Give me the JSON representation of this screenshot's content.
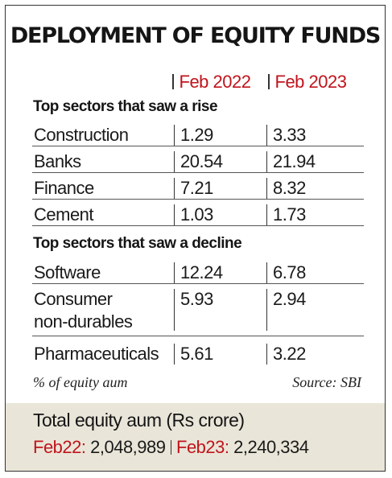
{
  "chart_data": {
    "type": "table",
    "title": "DEPLOYMENT OF EQUITY FUNDS",
    "columns": [
      "Feb 2022",
      "Feb 2023"
    ],
    "sections": [
      {
        "heading": "Top sectors that saw a rise",
        "rows": [
          {
            "label": [
              "Construction"
            ],
            "values": [
              "1.29",
              "3.33"
            ]
          },
          {
            "label": [
              "Banks"
            ],
            "values": [
              "20.54",
              "21.94"
            ]
          },
          {
            "label": [
              "Finance"
            ],
            "values": [
              "7.21",
              "8.32"
            ]
          },
          {
            "label": [
              "Cement"
            ],
            "values": [
              "1.03",
              "1.73"
            ]
          }
        ]
      },
      {
        "heading": "Top sectors that saw a decline",
        "rows": [
          {
            "label": [
              "Software"
            ],
            "values": [
              "12.24",
              "6.78"
            ]
          },
          {
            "label": [
              "Consumer",
              "non-durables"
            ],
            "values": [
              "5.93",
              "2.94"
            ]
          },
          {
            "label": [
              "Pharmaceuticals"
            ],
            "values": [
              "5.61",
              "3.22"
            ]
          }
        ]
      }
    ],
    "unit_note": "% of equity aum",
    "source": "Source: SBI"
  },
  "footer": {
    "title": "Total equity aum (Rs crore)",
    "items": [
      {
        "label": "Feb22:",
        "value": "2,048,989"
      },
      {
        "label": "Feb23:",
        "value": "2,240,334"
      }
    ]
  },
  "colors": {
    "accent": "#c0141c",
    "footer_bg": "#e9e6d9"
  }
}
